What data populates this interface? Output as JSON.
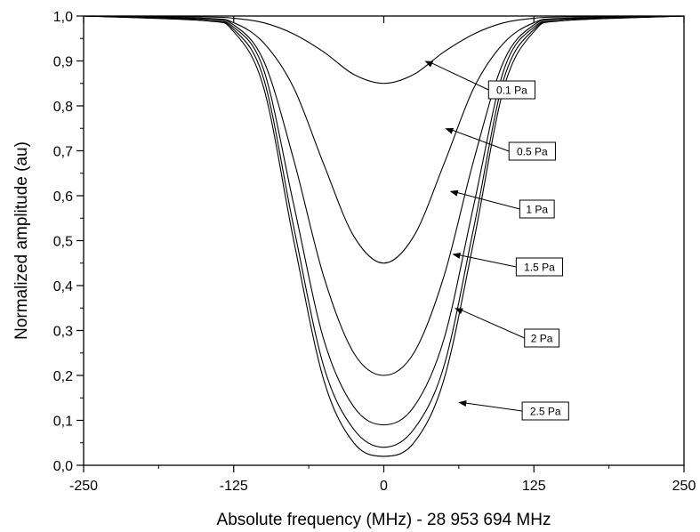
{
  "chart_data": {
    "type": "line",
    "title": "",
    "xlabel": "Absolute frequency (MHz) - 28 953 694 MHz",
    "ylabel": "Normalized amplitude (au)",
    "xlim": [
      -250,
      250
    ],
    "ylim": [
      0.0,
      1.0
    ],
    "x_ticks": [
      {
        "value": -250,
        "label": "-250"
      },
      {
        "value": -125,
        "label": "-125"
      },
      {
        "value": 0,
        "label": "0"
      },
      {
        "value": 125,
        "label": "125"
      },
      {
        "value": 250,
        "label": "250"
      }
    ],
    "y_ticks": [
      {
        "value": 0.0,
        "label": "0,0"
      },
      {
        "value": 0.1,
        "label": "0,1"
      },
      {
        "value": 0.2,
        "label": "0,2"
      },
      {
        "value": 0.3,
        "label": "0,3"
      },
      {
        "value": 0.4,
        "label": "0,4"
      },
      {
        "value": 0.5,
        "label": "0,5"
      },
      {
        "value": 0.6,
        "label": "0,6"
      },
      {
        "value": 0.7,
        "label": "0,7"
      },
      {
        "value": 0.8,
        "label": "0,8"
      },
      {
        "value": 0.9,
        "label": "0,9"
      },
      {
        "value": 1.0,
        "label": "1,0"
      }
    ],
    "grid": false,
    "line_color": "#000000",
    "series": [
      {
        "name": "0.1 Pa",
        "x": [
          -250,
          -150,
          -125,
          -100,
          -75,
          -50,
          -25,
          0,
          25,
          50,
          75,
          100,
          125,
          150,
          250
        ],
        "y": [
          1.0,
          0.998,
          0.995,
          0.985,
          0.96,
          0.92,
          0.87,
          0.85,
          0.87,
          0.92,
          0.96,
          0.985,
          0.995,
          0.998,
          1.0
        ],
        "annotation": {
          "x": 34,
          "y": 0.9
        }
      },
      {
        "name": "0.5 Pa",
        "x": [
          -250,
          -150,
          -125,
          -100,
          -75,
          -50,
          -25,
          0,
          25,
          50,
          75,
          100,
          125,
          150,
          250
        ],
        "y": [
          1.0,
          0.995,
          0.985,
          0.94,
          0.84,
          0.67,
          0.51,
          0.45,
          0.51,
          0.67,
          0.84,
          0.94,
          0.985,
          0.995,
          1.0
        ],
        "annotation": {
          "x": 51,
          "y": 0.75
        }
      },
      {
        "name": "1 Pa",
        "x": [
          -250,
          -150,
          -125,
          -100,
          -75,
          -50,
          -25,
          0,
          25,
          50,
          75,
          100,
          125,
          150,
          250
        ],
        "y": [
          1.0,
          0.993,
          0.98,
          0.9,
          0.68,
          0.42,
          0.25,
          0.2,
          0.25,
          0.42,
          0.68,
          0.9,
          0.98,
          0.993,
          1.0
        ],
        "annotation": {
          "x": 55,
          "y": 0.61
        }
      },
      {
        "name": "1.5 Pa",
        "x": [
          -250,
          -150,
          -125,
          -100,
          -75,
          -50,
          -25,
          0,
          25,
          50,
          75,
          100,
          125,
          150,
          250
        ],
        "y": [
          1.0,
          0.99,
          0.975,
          0.88,
          0.58,
          0.28,
          0.13,
          0.09,
          0.13,
          0.28,
          0.58,
          0.88,
          0.975,
          0.99,
          1.0
        ],
        "annotation": {
          "x": 57,
          "y": 0.47
        }
      },
      {
        "name": "2 Pa",
        "x": [
          -250,
          -150,
          -125,
          -100,
          -75,
          -50,
          -25,
          0,
          25,
          50,
          75,
          100,
          125,
          150,
          250
        ],
        "y": [
          1.0,
          0.99,
          0.97,
          0.86,
          0.53,
          0.22,
          0.08,
          0.04,
          0.08,
          0.22,
          0.53,
          0.86,
          0.97,
          0.99,
          1.0
        ],
        "annotation": {
          "x": 59,
          "y": 0.35
        }
      },
      {
        "name": "2.5 Pa",
        "x": [
          -250,
          -150,
          -125,
          -100,
          -75,
          -50,
          -25,
          0,
          25,
          50,
          75,
          100,
          125,
          150,
          250
        ],
        "y": [
          1.0,
          0.99,
          0.965,
          0.84,
          0.5,
          0.19,
          0.05,
          0.02,
          0.05,
          0.19,
          0.5,
          0.84,
          0.965,
          0.99,
          1.0
        ],
        "annotation": {
          "x": 62,
          "y": 0.14
        }
      }
    ]
  }
}
